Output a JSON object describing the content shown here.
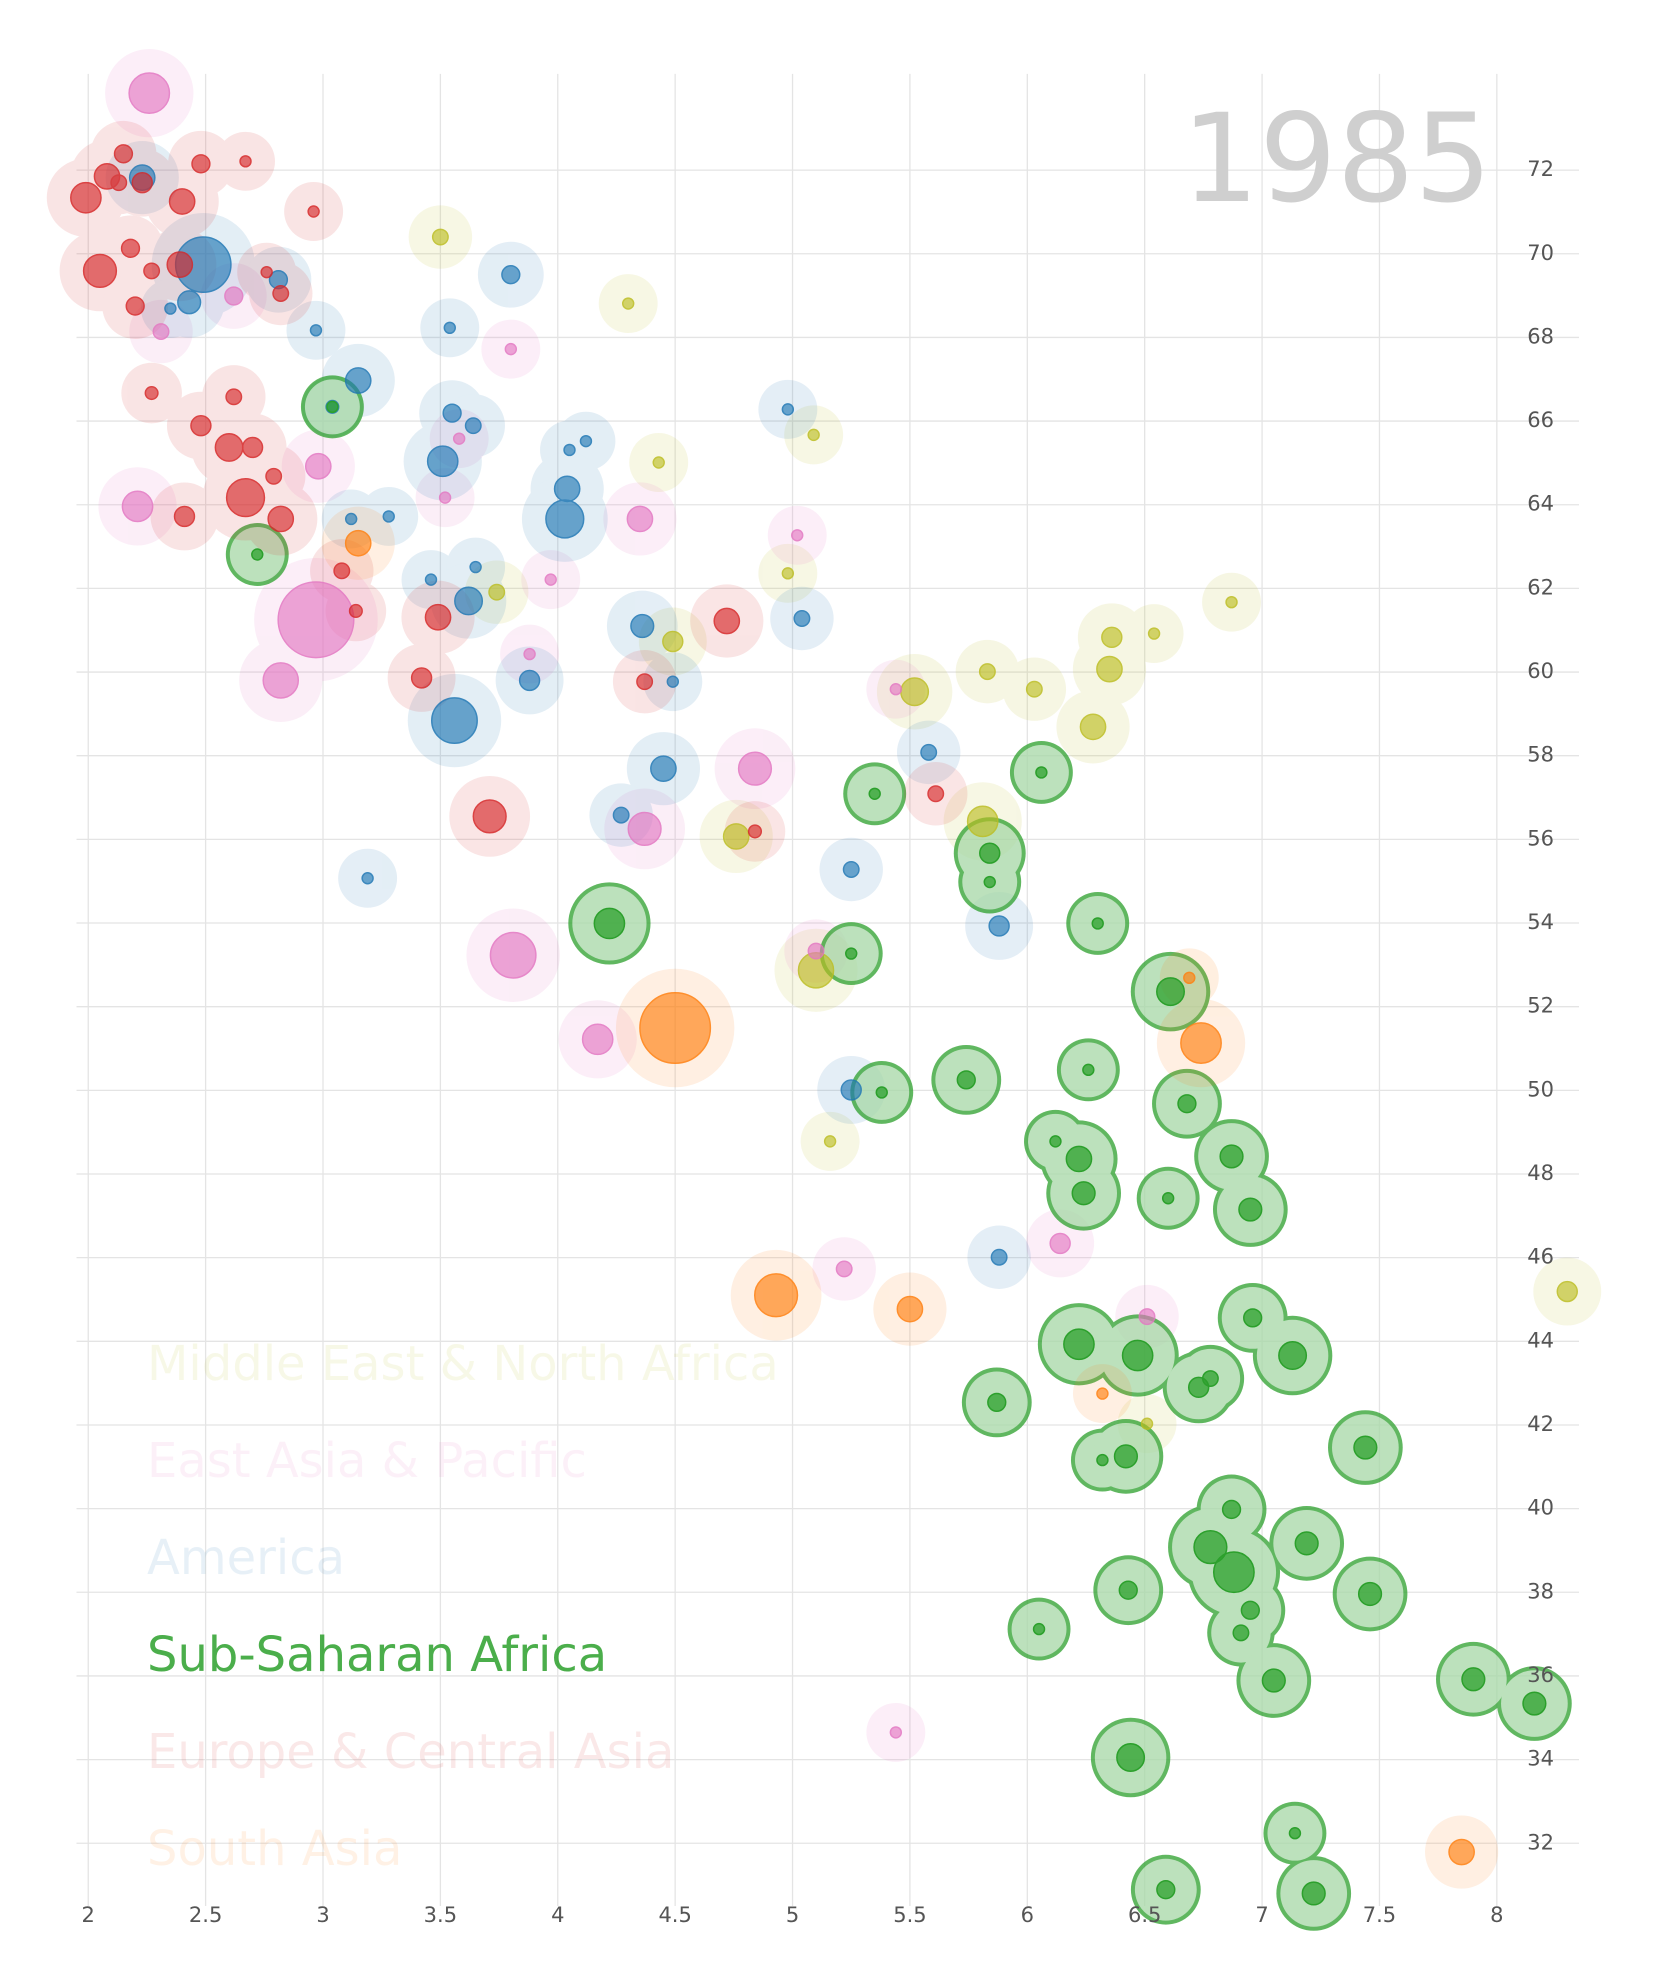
{
  "chart_data": {
    "type": "bubble",
    "year": "1985",
    "xlim": [
      1.95,
      8.35
    ],
    "ylim": [
      30.5,
      74.3
    ],
    "xticks": [
      2,
      2.5,
      3,
      3.5,
      4,
      4.5,
      5,
      5.5,
      6,
      6.5,
      7,
      7.5,
      8
    ],
    "yticks": [
      32,
      34,
      36,
      38,
      40,
      42,
      44,
      46,
      48,
      50,
      52,
      54,
      56,
      58,
      60,
      62,
      64,
      66,
      68,
      70,
      72
    ],
    "grid": true,
    "highlight_series": 3,
    "series": [
      {
        "name": "Middle East & North Africa",
        "color": "#bcbd22",
        "x": [
          3.5,
          4.3,
          4.43,
          5.09,
          4.98,
          3.74,
          4.49,
          5.52,
          5.83,
          6.03,
          6.35,
          6.36,
          6.54,
          6.87,
          6.28,
          5.81,
          4.76,
          5.1,
          5.16,
          6.51,
          8.3
        ],
        "values": [
          70.4,
          68.81,
          65.01,
          65.67,
          62.36,
          61.91,
          60.73,
          59.53,
          60.01,
          59.59,
          60.07,
          60.83,
          60.92,
          61.67,
          58.69,
          56.43,
          56.07,
          52.87,
          48.78,
          42.03,
          45.19
        ],
        "sizes": [
          6,
          3,
          3,
          3,
          3,
          6,
          10,
          19,
          6,
          6,
          16,
          10,
          3,
          3,
          16,
          23,
          16,
          31,
          3,
          3,
          10
        ]
      },
      {
        "name": "East Asia & Pacific",
        "color": "#e377c2",
        "x": [
          2.26,
          2.97,
          2.82,
          2.21,
          2.98,
          2.31,
          2.62,
          3.8,
          3.58,
          3.52,
          4.35,
          3.97,
          3.88,
          5.02,
          5.44,
          4.84,
          4.37,
          5.1,
          3.81,
          4.17,
          5.22,
          6.14,
          6.51,
          5.44
        ],
        "values": [
          73.84,
          61.25,
          59.8,
          63.96,
          64.92,
          68.14,
          68.99,
          67.72,
          65.58,
          64.17,
          63.66,
          62.21,
          60.43,
          63.27,
          59.59,
          57.69,
          56.25,
          53.33,
          53.23,
          51.22,
          45.73,
          46.34,
          44.59,
          34.65
        ],
        "sizes": [
          41,
          144,
          31,
          23,
          16,
          6,
          8,
          3,
          3,
          3,
          16,
          3,
          3,
          3,
          3,
          27,
          27,
          6,
          52,
          23,
          6,
          10,
          6,
          3
        ]
      },
      {
        "name": "America",
        "color": "#1f77b4",
        "x": [
          2.23,
          2.49,
          2.43,
          2.35,
          2.81,
          2.97,
          3.15,
          3.04,
          3.8,
          3.54,
          3.55,
          3.64,
          3.51,
          4.05,
          4.12,
          4.04,
          4.03,
          3.12,
          3.28,
          4.98,
          3.46,
          3.65,
          3.62,
          4.36,
          5.04,
          4.49,
          3.88,
          3.56,
          4.45,
          4.27,
          5.58,
          3.19,
          5.25,
          5.88,
          5.25,
          5.88
        ],
        "values": [
          71.82,
          69.74,
          68.84,
          68.69,
          69.38,
          68.17,
          66.97,
          66.34,
          69.5,
          68.23,
          66.19,
          65.89,
          65.04,
          65.31,
          65.52,
          64.38,
          63.66,
          63.66,
          63.72,
          66.28,
          62.21,
          62.51,
          61.7,
          61.1,
          61.28,
          59.77,
          59.8,
          58.84,
          57.69,
          56.58,
          58.08,
          55.07,
          55.28,
          53.93,
          50.01,
          46.01
        ],
        "sizes": [
          16,
          77,
          13,
          3,
          8,
          3,
          16,
          4,
          8,
          3,
          8,
          6,
          23,
          3,
          3,
          16,
          36,
          3,
          3,
          3,
          3,
          3,
          19,
          13,
          6,
          3,
          10,
          52,
          16,
          6,
          6,
          3,
          6,
          10,
          10,
          6
        ]
      },
      {
        "name": "Sub-Saharan Africa",
        "color": "#2ca02c",
        "x": [
          3.04,
          2.72,
          4.22,
          5.35,
          5.84,
          5.84,
          6.06,
          5.25,
          6.3,
          6.61,
          5.74,
          5.38,
          6.26,
          6.68,
          6.12,
          6.22,
          6.24,
          6.87,
          6.6,
          6.95,
          6.96,
          6.22,
          6.47,
          7.13,
          6.78,
          6.73,
          5.87,
          6.32,
          6.42,
          7.44,
          6.87,
          6.78,
          7.19,
          6.88,
          6.43,
          7.46,
          6.95,
          6.91,
          6.05,
          7.05,
          7.9,
          8.16,
          6.44,
          7.14,
          6.59,
          7.22
        ],
        "values": [
          66.34,
          62.81,
          53.99,
          57.09,
          55.67,
          54.98,
          57.6,
          53.27,
          53.99,
          52.36,
          50.25,
          49.95,
          50.49,
          49.68,
          48.78,
          48.36,
          47.54,
          48.42,
          47.42,
          47.15,
          44.56,
          43.93,
          43.66,
          43.66,
          43.11,
          42.9,
          42.54,
          41.16,
          41.25,
          41.46,
          39.98,
          39.08,
          39.17,
          38.48,
          38.05,
          37.96,
          37.57,
          37.03,
          37.12,
          35.89,
          35.92,
          35.34,
          34.05,
          32.24,
          30.89,
          30.8
        ],
        "sizes": [
          3,
          3,
          23,
          3,
          10,
          3,
          3,
          3,
          3,
          19,
          8,
          3,
          3,
          8,
          3,
          16,
          13,
          13,
          3,
          13,
          8,
          23,
          23,
          19,
          6,
          10,
          8,
          3,
          13,
          13,
          8,
          27,
          13,
          41,
          8,
          13,
          8,
          6,
          3,
          13,
          13,
          13,
          19,
          3,
          8,
          13
        ]
      },
      {
        "name": "Europe & Central Asia",
        "color": "#d62728",
        "x": [
          1.99,
          2.08,
          2.15,
          2.23,
          2.13,
          2.48,
          2.67,
          2.4,
          2.96,
          2.18,
          2.05,
          2.27,
          2.39,
          2.2,
          2.76,
          2.82,
          2.27,
          2.62,
          2.48,
          2.6,
          2.7,
          2.79,
          2.67,
          2.82,
          2.41,
          3.08,
          3.14,
          3.49,
          3.42,
          3.71,
          4.37,
          4.72,
          4.84,
          5.61
        ],
        "values": [
          71.34,
          71.85,
          72.39,
          71.7,
          71.7,
          72.15,
          72.21,
          71.25,
          71.01,
          70.13,
          69.59,
          69.59,
          69.74,
          68.75,
          69.56,
          69.05,
          66.67,
          66.58,
          65.89,
          65.37,
          65.37,
          64.68,
          64.17,
          63.66,
          63.72,
          62.42,
          61.46,
          61.31,
          59.86,
          56.55,
          59.77,
          61.22,
          56.19,
          57.09
        ],
        "sizes": [
          23,
          16,
          8,
          10,
          6,
          8,
          3,
          16,
          3,
          8,
          27,
          6,
          16,
          8,
          3,
          6,
          4,
          6,
          10,
          19,
          10,
          6,
          36,
          16,
          10,
          6,
          4,
          16,
          10,
          27,
          6,
          16,
          4,
          6
        ]
      },
      {
        "name": "South Asia",
        "color": "#ff7f0e",
        "x": [
          3.15,
          4.5,
          4.93,
          5.5,
          6.69,
          6.74,
          6.32,
          7.85
        ],
        "values": [
          63.08,
          51.49,
          45.1,
          44.77,
          52.69,
          51.13,
          42.75,
          31.79
        ],
        "sizes": [
          16,
          125,
          46,
          16,
          3,
          41,
          3,
          16
        ]
      }
    ]
  }
}
